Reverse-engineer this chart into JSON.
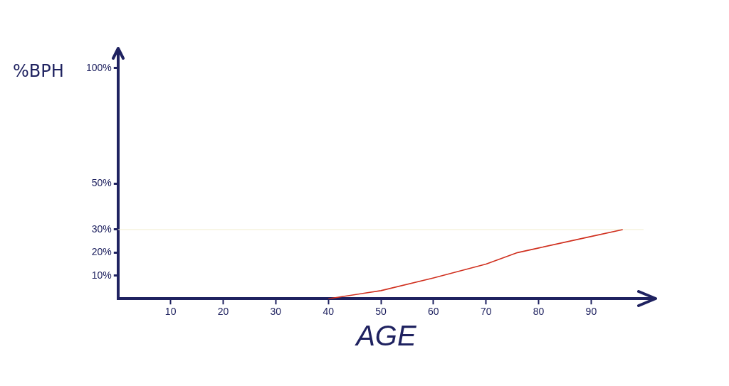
{
  "chart_data": {
    "type": "line",
    "xlabel": "AGE",
    "ylabel": "%BPH",
    "x": [
      40,
      50,
      60,
      70,
      76,
      80,
      90,
      96
    ],
    "series": [
      {
        "color": "#d0301f",
        "values": [
          0,
          3.5,
          9,
          15,
          20,
          22,
          27,
          30
        ]
      }
    ],
    "xlim": [
      0,
      102
    ],
    "xticks": [
      10,
      20,
      30,
      40,
      50,
      60,
      70,
      80,
      90
    ],
    "ylim": [
      0,
      108
    ],
    "yticks": [
      {
        "value": 10,
        "label": "10%"
      },
      {
        "value": 20,
        "label": "20%"
      },
      {
        "value": 30,
        "label": "30%"
      },
      {
        "value": 50,
        "label": "50%"
      },
      {
        "value": 100,
        "label": "100%"
      }
    ],
    "ref_lines": [
      {
        "axis": "y",
        "value": 30,
        "color": "#f1edcf"
      }
    ],
    "grid": false,
    "legend": false,
    "marker": "none",
    "line_style": "solid"
  }
}
